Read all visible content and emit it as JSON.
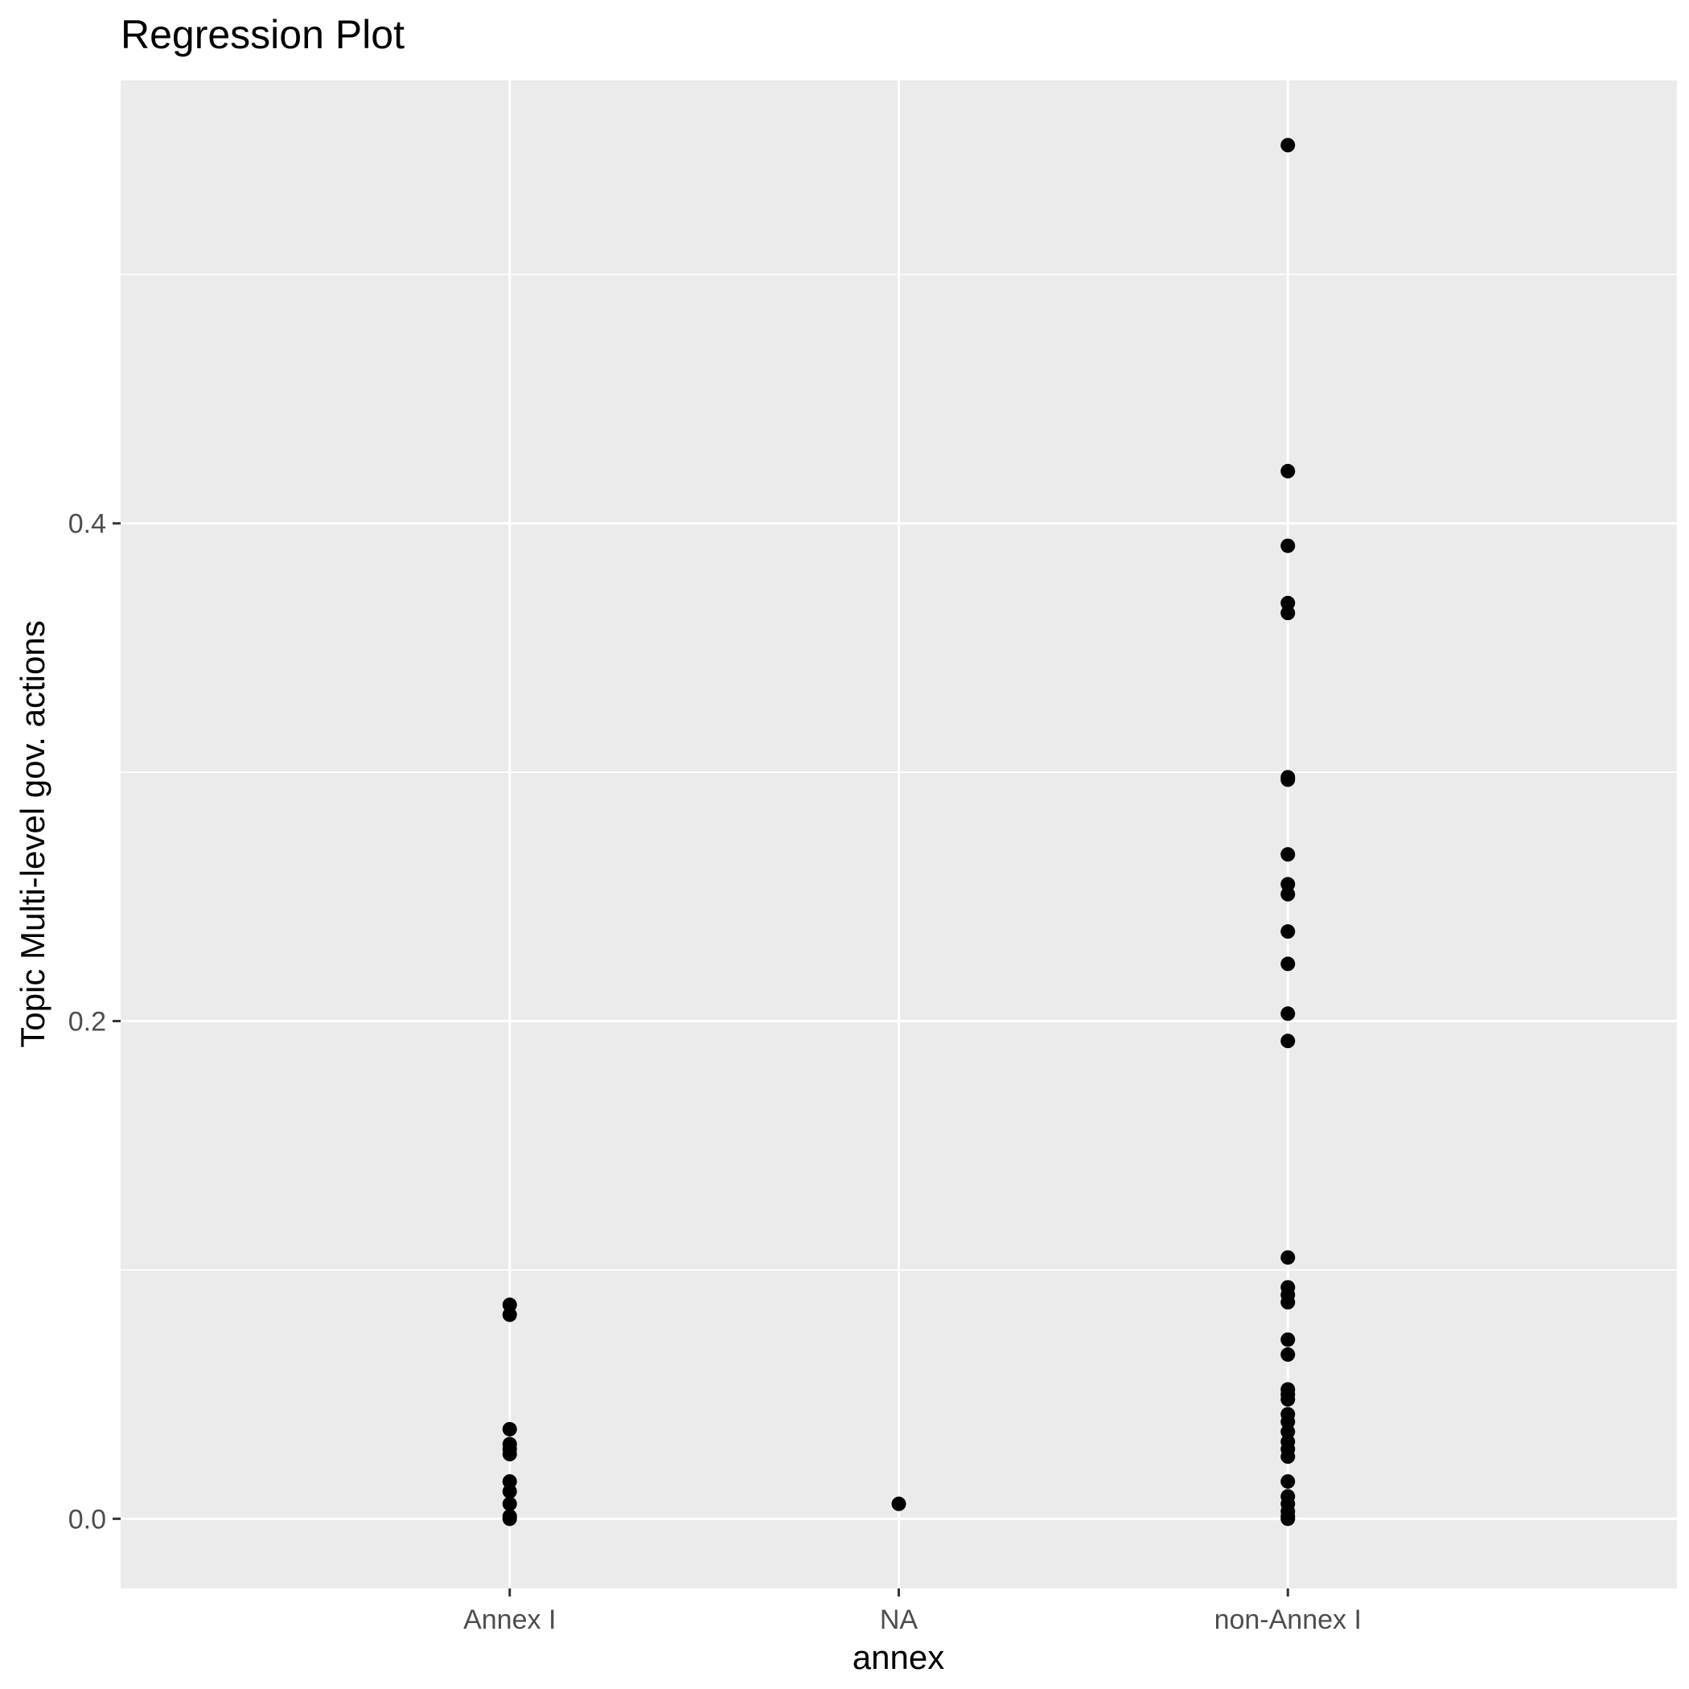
{
  "chart_data": {
    "type": "scatter",
    "title": "Regression Plot",
    "xlabel": "annex",
    "ylabel": "Topic Multi-level gov. actions",
    "categories": [
      "Annex I",
      "NA",
      "non-Annex I"
    ],
    "ylim": [
      -0.028,
      0.578
    ],
    "y_ticks": [
      0.0,
      0.2,
      0.4
    ],
    "y_tick_labels": [
      "0.0",
      "0.2",
      "0.4"
    ],
    "grid": true,
    "colors": {
      "panel_background": "#ebebeb",
      "grid_line": "#ffffff",
      "point": "#000000",
      "tick_label": "#4d4d4d"
    },
    "points": [
      {
        "x": "Annex I",
        "y": 0.086
      },
      {
        "x": "Annex I",
        "y": 0.082
      },
      {
        "x": "Annex I",
        "y": 0.036
      },
      {
        "x": "Annex I",
        "y": 0.03
      },
      {
        "x": "Annex I",
        "y": 0.028
      },
      {
        "x": "Annex I",
        "y": 0.026
      },
      {
        "x": "Annex I",
        "y": 0.015
      },
      {
        "x": "Annex I",
        "y": 0.011
      },
      {
        "x": "Annex I",
        "y": 0.006
      },
      {
        "x": "Annex I",
        "y": 0.001
      },
      {
        "x": "Annex I",
        "y": 0.0
      },
      {
        "x": "NA",
        "y": 0.006
      },
      {
        "x": "non-Annex I",
        "y": 0.552
      },
      {
        "x": "non-Annex I",
        "y": 0.421
      },
      {
        "x": "non-Annex I",
        "y": 0.391
      },
      {
        "x": "non-Annex I",
        "y": 0.368
      },
      {
        "x": "non-Annex I",
        "y": 0.364
      },
      {
        "x": "non-Annex I",
        "y": 0.298
      },
      {
        "x": "non-Annex I",
        "y": 0.297
      },
      {
        "x": "non-Annex I",
        "y": 0.267
      },
      {
        "x": "non-Annex I",
        "y": 0.255
      },
      {
        "x": "non-Annex I",
        "y": 0.251
      },
      {
        "x": "non-Annex I",
        "y": 0.236
      },
      {
        "x": "non-Annex I",
        "y": 0.223
      },
      {
        "x": "non-Annex I",
        "y": 0.203
      },
      {
        "x": "non-Annex I",
        "y": 0.192
      },
      {
        "x": "non-Annex I",
        "y": 0.105
      },
      {
        "x": "non-Annex I",
        "y": 0.093
      },
      {
        "x": "non-Annex I",
        "y": 0.09
      },
      {
        "x": "non-Annex I",
        "y": 0.087
      },
      {
        "x": "non-Annex I",
        "y": 0.072
      },
      {
        "x": "non-Annex I",
        "y": 0.066
      },
      {
        "x": "non-Annex I",
        "y": 0.052
      },
      {
        "x": "non-Annex I",
        "y": 0.05
      },
      {
        "x": "non-Annex I",
        "y": 0.048
      },
      {
        "x": "non-Annex I",
        "y": 0.042
      },
      {
        "x": "non-Annex I",
        "y": 0.039
      },
      {
        "x": "non-Annex I",
        "y": 0.035
      },
      {
        "x": "non-Annex I",
        "y": 0.031
      },
      {
        "x": "non-Annex I",
        "y": 0.028
      },
      {
        "x": "non-Annex I",
        "y": 0.025
      },
      {
        "x": "non-Annex I",
        "y": 0.015
      },
      {
        "x": "non-Annex I",
        "y": 0.009
      },
      {
        "x": "non-Annex I",
        "y": 0.006
      },
      {
        "x": "non-Annex I",
        "y": 0.003
      },
      {
        "x": "non-Annex I",
        "y": 0.001
      },
      {
        "x": "non-Annex I",
        "y": 0.0
      }
    ]
  }
}
